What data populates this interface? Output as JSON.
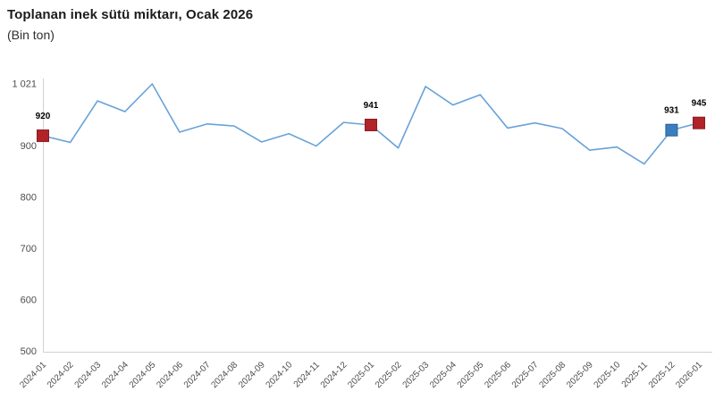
{
  "header": {
    "title": "Toplanan inek sütü miktarı, Ocak 2026",
    "subtitle": "(Bin ton)"
  },
  "colors": {
    "line": "#68a2d9",
    "marker_red_fill": "#b02329",
    "marker_red_border": "#8c1c20",
    "marker_blue_fill": "#3b7ec0",
    "marker_blue_border": "#2b5f94",
    "axis_line": "#cfd2d6",
    "tick_text": "#4d4d4d",
    "point_label_text": "#000000",
    "background": "#ffffff"
  },
  "chart_data": {
    "type": "line",
    "title": "Toplanan inek sütü miktarı, Ocak 2026",
    "subtitle": "(Bin ton)",
    "xlabel": "",
    "ylabel": "Bin ton",
    "x": [
      "2024-01",
      "2024-02",
      "2024-03",
      "2024-04",
      "2024-05",
      "2024-06",
      "2024-07",
      "2024-08",
      "2024-09",
      "2024-10",
      "2024-11",
      "2024-12",
      "2025-01",
      "2025-02",
      "2025-03",
      "2025-04",
      "2025-05",
      "2025-06",
      "2025-07",
      "2025-08",
      "2025-09",
      "2025-10",
      "2025-11",
      "2025-12",
      "2026-01"
    ],
    "values": [
      920,
      907,
      988,
      967,
      1021,
      927,
      943,
      939,
      908,
      924,
      900,
      946,
      941,
      896,
      1016,
      980,
      1000,
      935,
      945,
      934,
      892,
      898,
      865,
      931,
      945
    ],
    "ylim": [
      500,
      1021
    ],
    "yticks": [
      500,
      600,
      700,
      800,
      900,
      1021
    ],
    "ytick_labels": [
      "500",
      "600",
      "700",
      "800",
      "900",
      "1 021"
    ],
    "xtick_rotation": -45,
    "grid": false,
    "legend": "none",
    "marked_points": [
      {
        "x": "2024-01",
        "value": 920,
        "label": "920",
        "fill": "#b02329",
        "border": "#8c1c20"
      },
      {
        "x": "2025-01",
        "value": 941,
        "label": "941",
        "fill": "#b02329",
        "border": "#8c1c20"
      },
      {
        "x": "2025-12",
        "value": 931,
        "label": "931",
        "fill": "#3b7ec0",
        "border": "#2b5f94"
      },
      {
        "x": "2026-01",
        "value": 945,
        "label": "945",
        "fill": "#b02329",
        "border": "#8c1c20"
      }
    ]
  }
}
